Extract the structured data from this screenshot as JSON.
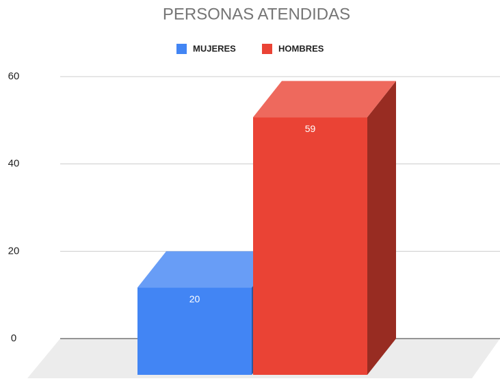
{
  "chart_data": {
    "type": "bar3d",
    "title": "PERSONAS ATENDIDAS",
    "categories": [
      null
    ],
    "series": [
      {
        "name": "MUJERES",
        "color": "#4285f4",
        "values": [
          20
        ]
      },
      {
        "name": "HOMBRES",
        "color": "#ea4335",
        "values": [
          59
        ]
      }
    ],
    "ylim": [
      0,
      60
    ],
    "yticks": [
      0,
      20,
      40,
      60
    ],
    "grid": true,
    "legend": "top"
  }
}
